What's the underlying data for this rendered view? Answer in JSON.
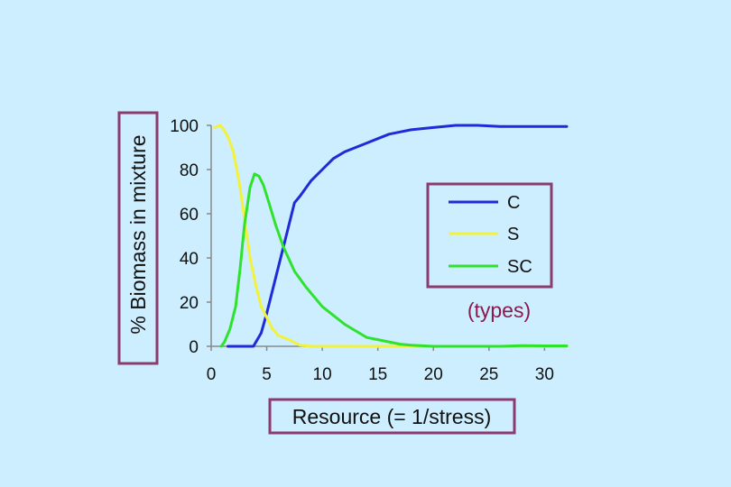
{
  "chart_data": {
    "type": "line",
    "xlabel": "Resource (= 1/stress)",
    "ylabel": "% Biomass in mixture",
    "xlim": [
      0,
      32
    ],
    "ylim": [
      0,
      100
    ],
    "xticks": [
      0,
      5,
      10,
      15,
      20,
      25,
      30
    ],
    "yticks": [
      0,
      20,
      40,
      60,
      80,
      100
    ],
    "grid": false,
    "legend": {
      "position": "right",
      "note": "(types)"
    },
    "series": [
      {
        "name": "C",
        "color": "#1f2bd6",
        "points": [
          [
            1.5,
            0
          ],
          [
            2,
            0
          ],
          [
            3.8,
            0
          ],
          [
            4.5,
            6
          ],
          [
            5,
            15
          ],
          [
            6,
            35
          ],
          [
            7,
            55
          ],
          [
            7.5,
            65
          ],
          [
            8,
            68
          ],
          [
            9,
            75
          ],
          [
            10,
            80
          ],
          [
            11,
            85
          ],
          [
            12,
            88
          ],
          [
            13,
            90
          ],
          [
            14,
            92
          ],
          [
            15,
            94
          ],
          [
            16,
            96
          ],
          [
            17,
            97
          ],
          [
            18,
            98
          ],
          [
            20,
            99
          ],
          [
            22,
            100
          ],
          [
            24,
            100
          ],
          [
            26,
            99.5
          ],
          [
            28,
            99.5
          ],
          [
            30,
            99.5
          ],
          [
            32,
            99.5
          ]
        ]
      },
      {
        "name": "S",
        "color": "#f2f23a",
        "points": [
          [
            0.3,
            99
          ],
          [
            0.8,
            100
          ],
          [
            1,
            99
          ],
          [
            1.5,
            95
          ],
          [
            2,
            88
          ],
          [
            2.5,
            75
          ],
          [
            3,
            58
          ],
          [
            3.5,
            40
          ],
          [
            4,
            28
          ],
          [
            4.5,
            18
          ],
          [
            5,
            13
          ],
          [
            5.5,
            8
          ],
          [
            6,
            5
          ],
          [
            7,
            3
          ],
          [
            8,
            0.5
          ],
          [
            9,
            0
          ],
          [
            12,
            0
          ],
          [
            14,
            0
          ],
          [
            16,
            0
          ],
          [
            18,
            0
          ],
          [
            20,
            0
          ],
          [
            22,
            0
          ],
          [
            24,
            0
          ],
          [
            26,
            0
          ],
          [
            28,
            0
          ],
          [
            30,
            0
          ],
          [
            32,
            0
          ]
        ]
      },
      {
        "name": "SC",
        "color": "#2ee22e",
        "points": [
          [
            0.9,
            0
          ],
          [
            1.2,
            2
          ],
          [
            1.7,
            8
          ],
          [
            2.2,
            18
          ],
          [
            2.6,
            35
          ],
          [
            3,
            55
          ],
          [
            3.5,
            72
          ],
          [
            3.9,
            78
          ],
          [
            4.3,
            77
          ],
          [
            4.7,
            73
          ],
          [
            5.2,
            65
          ],
          [
            5.8,
            55
          ],
          [
            6.5,
            45
          ],
          [
            7.5,
            34
          ],
          [
            8.5,
            27
          ],
          [
            10,
            18
          ],
          [
            11,
            14
          ],
          [
            12,
            10
          ],
          [
            13,
            7
          ],
          [
            14,
            4
          ],
          [
            15,
            3
          ],
          [
            16,
            2
          ],
          [
            17,
            1
          ],
          [
            18,
            0.5
          ],
          [
            20,
            0
          ],
          [
            22,
            0
          ],
          [
            24,
            0
          ],
          [
            26,
            0
          ],
          [
            28,
            0.3
          ],
          [
            30,
            0.2
          ],
          [
            32,
            0.2
          ]
        ]
      }
    ]
  },
  "colors": {
    "background": "#cdeefe",
    "frame": "#8b3b6d",
    "axis": "#888888",
    "note": "#8b1a4f"
  }
}
